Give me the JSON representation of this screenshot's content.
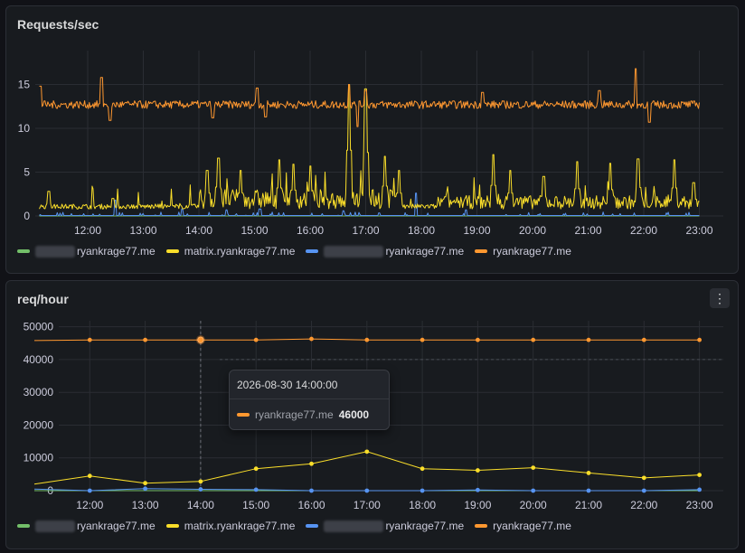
{
  "colors": {
    "green": "#73bf69",
    "yellow": "#fade2a",
    "blue": "#5794f2",
    "orange": "#ff9830",
    "background": "#111217",
    "panel": "#181b1f"
  },
  "icons": {
    "panel_menu": "kebab-menu-icon"
  },
  "panel1": {
    "title": "Requests/sec",
    "legend": [
      {
        "label": "ryankrage77.me",
        "redacted_prefix": true,
        "color": "#73bf69"
      },
      {
        "label": "matrix.ryankrage77.me",
        "redacted_prefix": false,
        "color": "#fade2a"
      },
      {
        "label": "ryankrage77.me",
        "redacted_prefix": true,
        "color": "#5794f2"
      },
      {
        "label": "ryankrage77.me",
        "redacted_prefix": false,
        "color": "#ff9830"
      }
    ]
  },
  "panel2": {
    "title": "req/hour",
    "menu_label": "⋮",
    "legend": [
      {
        "label": "ryankrage77.me",
        "redacted_prefix": true,
        "color": "#73bf69"
      },
      {
        "label": "matrix.ryankrage77.me",
        "redacted_prefix": false,
        "color": "#fade2a"
      },
      {
        "label": "ryankrage77.me",
        "redacted_prefix": true,
        "color": "#5794f2"
      },
      {
        "label": "ryankrage77.me",
        "redacted_prefix": false,
        "color": "#ff9830"
      }
    ],
    "tooltip": {
      "time": "2026-08-30 14:00:00",
      "series": "ryankrage77.me",
      "value": "46000"
    }
  },
  "chart_data": [
    {
      "type": "line",
      "title": "Requests/sec",
      "x_ticks": [
        "12:00",
        "13:00",
        "14:00",
        "15:00",
        "16:00",
        "17:00",
        "18:00",
        "19:00",
        "20:00",
        "21:00",
        "22:00",
        "23:00"
      ],
      "y_ticks": [
        "0",
        "5",
        "10",
        "15"
      ],
      "ylim": [
        0,
        17
      ],
      "xlim_hours": [
        11.13,
        23.0
      ],
      "grid": true,
      "series": [
        {
          "name": "ryankrage77.me",
          "color": "#ff9830",
          "base": 12.7,
          "spikes": [
            [
              11.15,
              14.8
            ],
            [
              12.25,
              15.8
            ],
            [
              12.4,
              10.9
            ],
            [
              14.25,
              11.2
            ],
            [
              15.05,
              14.6
            ],
            [
              15.2,
              11.3
            ],
            [
              16.7,
              15.0
            ],
            [
              16.85,
              10.2
            ],
            [
              17.0,
              14.3
            ],
            [
              19.1,
              14.1
            ],
            [
              21.2,
              14.3
            ],
            [
              21.85,
              16.8
            ],
            [
              22.1,
              10.7
            ]
          ]
        },
        {
          "name": "matrix.ryankrage77.me",
          "color": "#fade2a",
          "base": 0.8,
          "spikes": [
            [
              11.3,
              2.8
            ],
            [
              12.45,
              2.0
            ],
            [
              14.15,
              5.2
            ],
            [
              14.35,
              6.6
            ],
            [
              14.75,
              5.2
            ],
            [
              15.45,
              6.4
            ],
            [
              15.7,
              5.9
            ],
            [
              16.0,
              5.7
            ],
            [
              16.7,
              15.0
            ],
            [
              17.0,
              14.5
            ],
            [
              17.35,
              6.8
            ],
            [
              17.6,
              5.2
            ],
            [
              19.3,
              7.0
            ],
            [
              19.6,
              5.2
            ],
            [
              20.2,
              4.5
            ],
            [
              20.8,
              6.2
            ],
            [
              21.4,
              6.0
            ],
            [
              21.9,
              6.5
            ],
            [
              22.55,
              6.4
            ],
            [
              22.9,
              3.8
            ]
          ]
        },
        {
          "name": "ryankrage77.me",
          "color": "#5794f2",
          "base": 0.05,
          "spikes": [
            [
              12.5,
              1.8
            ],
            [
              13.7,
              0.8
            ],
            [
              14.5,
              0.7
            ],
            [
              15.1,
              0.8
            ],
            [
              16.6,
              0.6
            ],
            [
              17.9,
              2.6
            ],
            [
              18.8,
              0.7
            ]
          ]
        },
        {
          "name": "ryankrage77.me",
          "color": "#73bf69",
          "base": 0.0,
          "spikes": []
        }
      ]
    },
    {
      "type": "line",
      "title": "req/hour",
      "categories": [
        "11:00",
        "12:00",
        "13:00",
        "14:00",
        "15:00",
        "16:00",
        "17:00",
        "18:00",
        "19:00",
        "20:00",
        "21:00",
        "22:00",
        "23:00"
      ],
      "x_ticks": [
        "12:00",
        "13:00",
        "14:00",
        "15:00",
        "16:00",
        "17:00",
        "18:00",
        "19:00",
        "20:00",
        "21:00",
        "22:00",
        "23:00"
      ],
      "y_ticks": [
        "0",
        "10000",
        "20000",
        "30000",
        "40000",
        "50000"
      ],
      "ylim": [
        0,
        50000
      ],
      "grid": true,
      "series": [
        {
          "name": "ryankrage77.me",
          "color": "#ff9830",
          "values": [
            45800,
            46000,
            46000,
            46000,
            46000,
            46300,
            46000,
            46000,
            46000,
            46000,
            46000,
            46000,
            46000
          ]
        },
        {
          "name": "matrix.ryankrage77.me",
          "color": "#fade2a",
          "values": [
            2000,
            4500,
            2300,
            2800,
            6700,
            8200,
            11900,
            6700,
            6200,
            7000,
            5400,
            3900,
            4800
          ]
        },
        {
          "name": "ryankrage77.me",
          "color": "#5794f2",
          "values": [
            500,
            0,
            600,
            400,
            300,
            0,
            0,
            0,
            200,
            0,
            0,
            0,
            300
          ]
        },
        {
          "name": "ryankrage77.me",
          "color": "#73bf69",
          "values": [
            0,
            0,
            0,
            0,
            0,
            0,
            0,
            0,
            0,
            0,
            0,
            0,
            0
          ]
        }
      ],
      "hover_time": "14:00",
      "threshold_line": 40000
    }
  ]
}
